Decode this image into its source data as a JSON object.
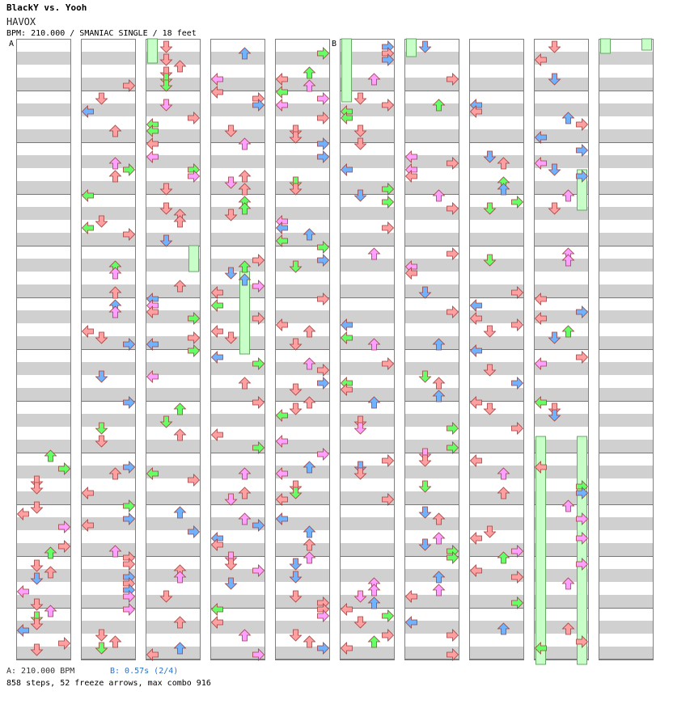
{
  "header": {
    "title": "BlackY vs. Yooh",
    "song": "HAVOX",
    "info": "BPM: 210.000 / SMANIAC SINGLE / 18 feet"
  },
  "markers": {
    "a": "A",
    "b": "B"
  },
  "footer": {
    "bpm_a": "A: 210.000 BPM",
    "stop_b": "B: 0.57s (2/4)",
    "stats": "858 steps, 52 freeze arrows, max combo 916"
  },
  "colors": {
    "left": "#ffc0c0",
    "down": "#ffc0c0",
    "up": "#66b3ff",
    "right": "#ffc0c0",
    "quarter": "#ff9fa0",
    "eighth": "#6fb3ff",
    "sixteenth": "#ff9fff",
    "twelfth": "#66ff66",
    "freeze": "#c8ffc8",
    "stripe": "#d0d0d0",
    "border": "#808080"
  },
  "icons": {
    "left": "left-arrow-icon",
    "down": "down-arrow-icon",
    "up": "up-arrow-icon",
    "right": "right-arrow-icon"
  }
}
